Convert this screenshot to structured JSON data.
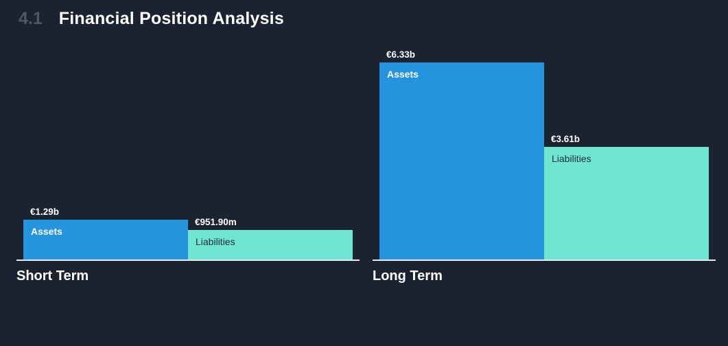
{
  "header": {
    "section_number": "4.1",
    "title": "Financial Position Analysis"
  },
  "colors": {
    "background": "#1b2230",
    "assets": "#2594df",
    "liabilities": "#6ee6d1",
    "baseline": "#e7ebee",
    "section_number": "#4d5866",
    "title": "#ffffff",
    "value_label": "#ffffff",
    "label_on_assets": "#ffffff",
    "label_on_liabilities": "#1e2a38",
    "group_label": "#ffffff"
  },
  "chart_data": {
    "type": "bar",
    "title": "Financial Position Analysis",
    "currency": "EUR",
    "ylim_billions": [
      0,
      7.06
    ],
    "grid": false,
    "legend_position": "labels-inside-bars",
    "groups": [
      {
        "label": "Short Term",
        "bars": [
          {
            "name": "Assets",
            "value_label": "€1.29b",
            "value_billions": 1.29,
            "color_key": "assets"
          },
          {
            "name": "Liabilities",
            "value_label": "€951.90m",
            "value_billions": 0.9519,
            "color_key": "liabilities"
          }
        ]
      },
      {
        "label": "Long Term",
        "bars": [
          {
            "name": "Assets",
            "value_label": "€6.33b",
            "value_billions": 6.33,
            "color_key": "assets"
          },
          {
            "name": "Liabilities",
            "value_label": "€3.61b",
            "value_billions": 3.61,
            "color_key": "liabilities"
          }
        ]
      }
    ]
  }
}
